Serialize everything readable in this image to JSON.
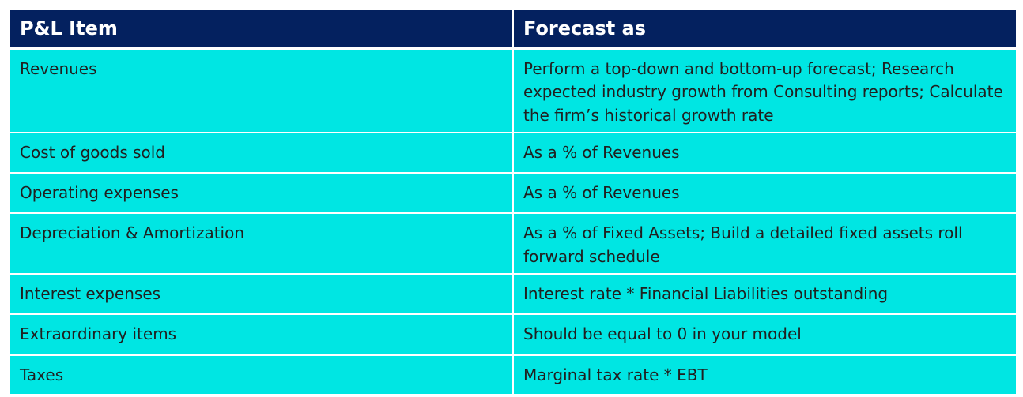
{
  "table": {
    "headers": [
      "P&L Item",
      "Forecast as"
    ],
    "rows": [
      {
        "item": "Revenues",
        "forecast": "Perform a top-down and bottom-up forecast; Research expected industry growth from Consulting reports; Calculate the firm’s historical growth rate"
      },
      {
        "item": "Cost of goods sold",
        "forecast": "As a % of Revenues"
      },
      {
        "item": "Operating expenses",
        "forecast": "As a % of Revenues"
      },
      {
        "item": "Depreciation & Amortization",
        "forecast": "As a % of Fixed Assets; Build a detailed fixed assets roll forward schedule"
      },
      {
        "item": "Interest expenses",
        "forecast": "Interest rate * Financial Liabilities outstanding"
      },
      {
        "item": "Extraordinary items",
        "forecast": "Should be equal to 0 in your model"
      },
      {
        "item": "Taxes",
        "forecast": "Marginal tax rate * EBT"
      }
    ]
  },
  "colors": {
    "header_bg": "#04215f",
    "header_text": "#ffffff",
    "cell_bg": "#00e6e3",
    "cell_text": "#202020"
  }
}
